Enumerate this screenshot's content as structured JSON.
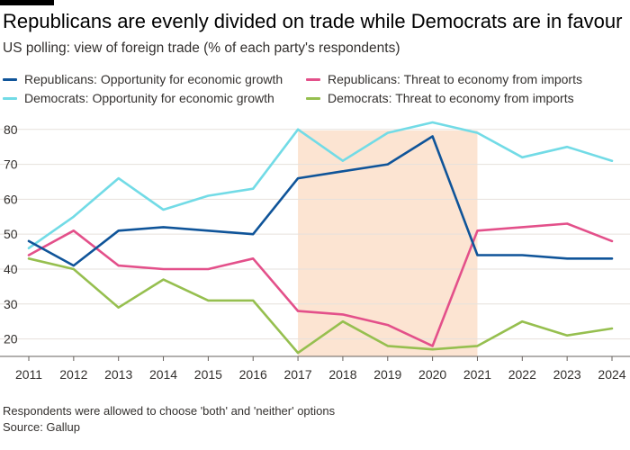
{
  "title": "Republicans are evenly divided on trade while Democrats are in favour",
  "subtitle": "US polling: view of foreign trade (% of each party's respondents)",
  "footnote": "Respondents were allowed to choose 'both' and 'neither' options",
  "source": "Source: Gallup",
  "chart_data": {
    "type": "line",
    "x": [
      2011,
      2012,
      2013,
      2014,
      2015,
      2016,
      2017,
      2018,
      2019,
      2020,
      2021,
      2022,
      2023,
      2024
    ],
    "series": [
      {
        "name": "Republicans: Opportunity for economic growth",
        "color": "#0f5499",
        "values": [
          48,
          41,
          51,
          52,
          51,
          50,
          66,
          68,
          70,
          78,
          44,
          44,
          43,
          43
        ]
      },
      {
        "name": "Republicans: Threat to economy from imports",
        "color": "#e3508a",
        "values": [
          44,
          51,
          41,
          40,
          40,
          43,
          28,
          27,
          24,
          18,
          51,
          52,
          53,
          48
        ]
      },
      {
        "name": "Democrats: Opportunity for economic growth",
        "color": "#72dbe6",
        "values": [
          46,
          55,
          66,
          57,
          61,
          63,
          80,
          71,
          79,
          82,
          79,
          72,
          75,
          71
        ]
      },
      {
        "name": "Democrats: Threat to economy from imports",
        "color": "#96bf4f",
        "values": [
          43,
          40,
          29,
          37,
          31,
          31,
          16,
          25,
          18,
          17,
          18,
          25,
          21,
          23
        ]
      }
    ],
    "shaded_range": [
      2017,
      2021
    ],
    "shaded_color": "#fce4d2",
    "xlabel": "",
    "ylabel": "",
    "ylim": [
      15,
      82
    ],
    "yticks": [
      20,
      30,
      40,
      50,
      60,
      70,
      80
    ],
    "grid": true,
    "legend": "top"
  }
}
